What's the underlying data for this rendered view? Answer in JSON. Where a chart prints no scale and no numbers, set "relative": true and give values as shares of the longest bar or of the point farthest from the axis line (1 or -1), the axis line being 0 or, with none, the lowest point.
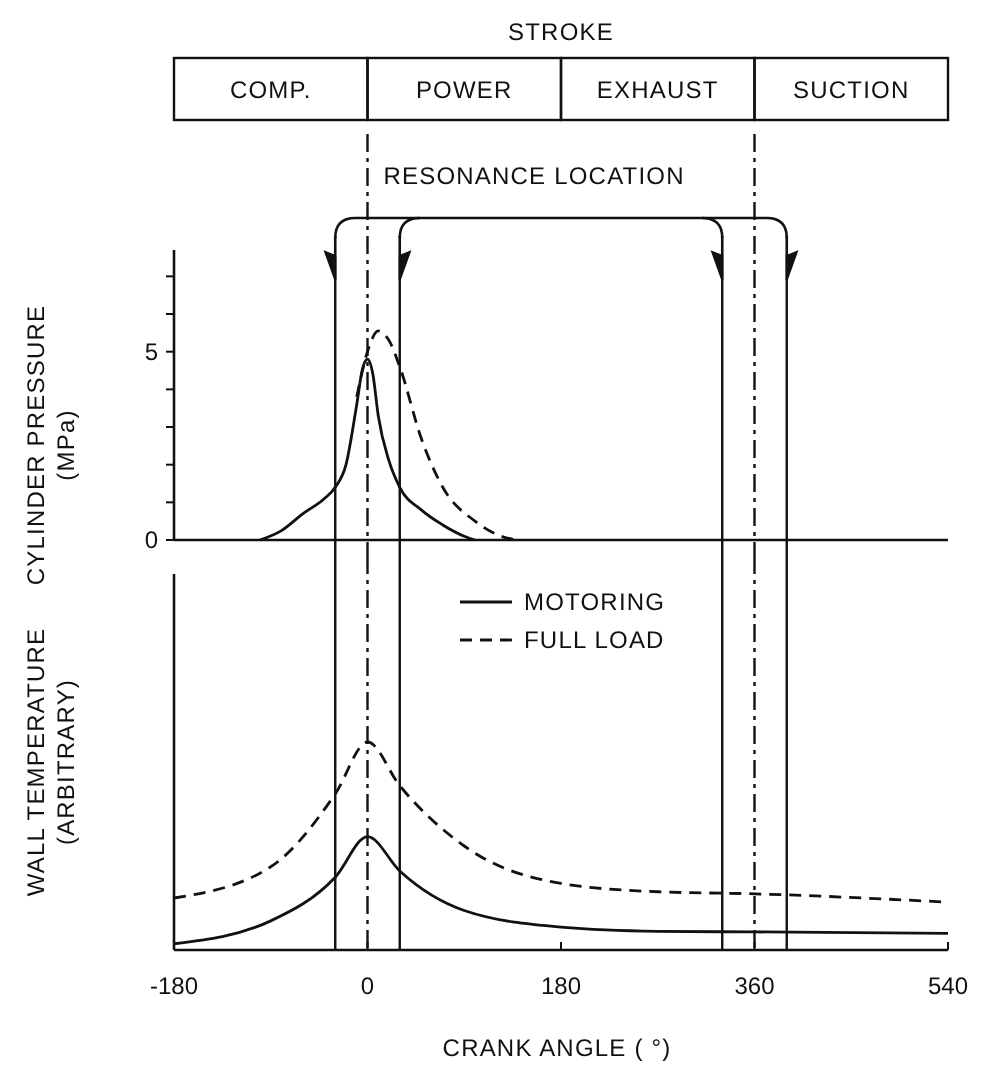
{
  "chart_data": [
    {
      "type": "line",
      "ylabel": "CYLINDER PRESSURE\n(MPa)",
      "xlim": [
        -180,
        540
      ],
      "ylim": [
        0,
        7.7
      ],
      "yticks": [
        0,
        {
          "value": 1,
          "label": null
        },
        {
          "value": 2,
          "label": null
        },
        {
          "value": 3,
          "label": null
        },
        {
          "value": 4,
          "label": null
        },
        5,
        {
          "value": 6,
          "label": null
        },
        {
          "value": 7,
          "label": null
        }
      ],
      "tick_labels": "y",
      "legend": false,
      "annotations": [
        "STROKE",
        "COMP.",
        "POWER",
        "EXHAUST",
        "SUCTION",
        "RESONANCE LOCATION"
      ],
      "ref_lines": [
        {
          "axis": "x",
          "value": -30,
          "line_style": "solid"
        },
        {
          "axis": "x",
          "value": 30,
          "line_style": "solid"
        },
        {
          "axis": "x",
          "value": 330,
          "line_style": "solid"
        },
        {
          "axis": "x",
          "value": 390,
          "line_style": "solid"
        },
        {
          "axis": "x",
          "value": 0,
          "line_style": "dashdot"
        },
        {
          "axis": "x",
          "value": 360,
          "line_style": "dashdot"
        }
      ],
      "series": [
        {
          "color": "#111111",
          "line_style": "solid",
          "x": [
            -100,
            -80,
            -60,
            -40,
            -30,
            -20,
            -10,
            -5,
            0,
            5,
            10,
            20,
            30,
            50,
            70,
            90,
            100
          ],
          "values": [
            0,
            0.25,
            0.7,
            1.1,
            1.4,
            2.0,
            3.6,
            4.5,
            4.8,
            4.4,
            3.3,
            2.1,
            1.4,
            0.8,
            0.4,
            0.1,
            0
          ]
        },
        {
          "color": "#111111",
          "line_style": "dashed",
          "x": [
            -10,
            0,
            10,
            20,
            30,
            50,
            70,
            100,
            130,
            140
          ],
          "values": [
            3.8,
            5.0,
            5.55,
            5.3,
            4.6,
            2.7,
            1.4,
            0.5,
            0.05,
            0
          ]
        }
      ]
    },
    {
      "type": "line",
      "ylabel": "WALL TEMPERATURE\n(ARBITRARY)",
      "xlabel": "CRANK ANGLE  ( °)",
      "xlim": [
        -180,
        540
      ],
      "xticks": [
        -180,
        0,
        180,
        360,
        540
      ],
      "relative": true,
      "tick_labels": "x",
      "legend": "top",
      "ref_lines": [
        {
          "axis": "x",
          "value": -30,
          "line_style": "solid"
        },
        {
          "axis": "x",
          "value": 30,
          "line_style": "solid"
        },
        {
          "axis": "x",
          "value": 330,
          "line_style": "solid"
        },
        {
          "axis": "x",
          "value": 390,
          "line_style": "solid"
        },
        {
          "axis": "x",
          "value": 0,
          "line_style": "dashdot"
        },
        {
          "axis": "x",
          "value": 360,
          "line_style": "dashdot"
        }
      ],
      "series": [
        {
          "name": "MOTORING",
          "color": "#111111",
          "line_style": "solid",
          "x": [
            -180,
            -90,
            -30,
            0,
            30,
            90,
            180,
            270,
            360,
            540
          ],
          "values": [
            0.03,
            0.14,
            0.35,
            0.545,
            0.38,
            0.19,
            0.11,
            0.09,
            0.087,
            0.08
          ]
        },
        {
          "name": "FULL LOAD",
          "color": "#111111",
          "line_style": "dashed",
          "x": [
            -180,
            -90,
            -30,
            0,
            30,
            90,
            180,
            270,
            360,
            540
          ],
          "values": [
            0.25,
            0.4,
            0.75,
            1,
            0.79,
            0.5,
            0.32,
            0.28,
            0.27,
            0.23
          ]
        }
      ]
    }
  ]
}
